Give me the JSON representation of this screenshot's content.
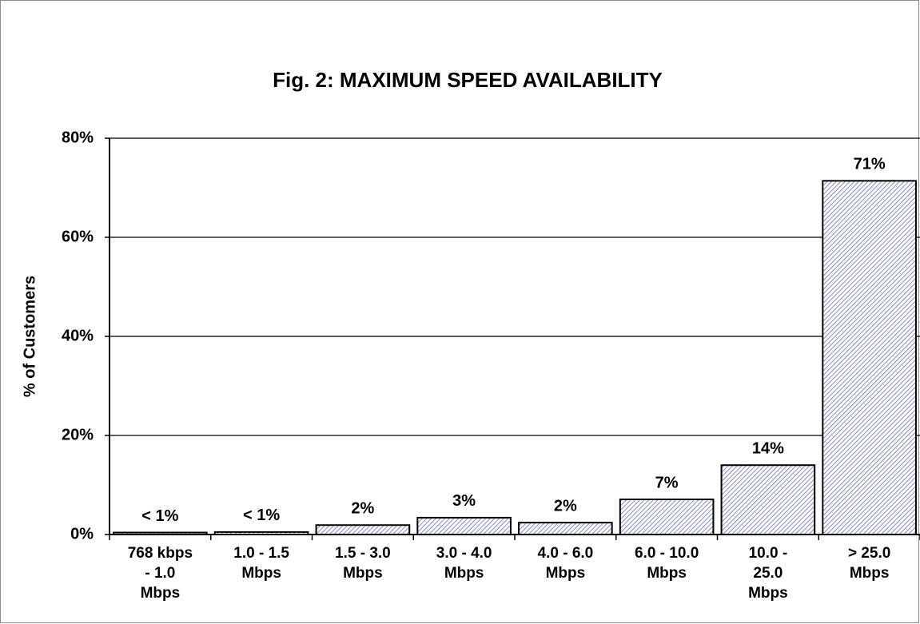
{
  "chart_data": {
    "type": "bar",
    "title": "Fig. 2:  MAXIMUM SPEED AVAILABILITY",
    "y_label": "% of Customers",
    "categories": [
      "768 kbps\n- 1.0\nMbps",
      "1.0 - 1.5\nMbps",
      "1.5 - 3.0\nMbps",
      "3.0 - 4.0\nMbps",
      "4.0 - 6.0\nMbps",
      "6.0 - 10.0\nMbps",
      "10.0 -\n25.0\nMbps",
      "> 25.0\nMbps"
    ],
    "values": [
      0.4,
      0.5,
      1.9,
      3.4,
      2.4,
      7.1,
      14,
      71.4
    ],
    "value_labels": [
      "< 1%",
      "< 1%",
      "2%",
      "3%",
      "2%",
      "7%",
      "14%",
      "71%"
    ],
    "color": "#6b6fa8",
    "ylim": [
      0,
      80
    ],
    "yticks": [
      {
        "value": 0,
        "label": "0%"
      },
      {
        "value": 20,
        "label": "20%"
      },
      {
        "value": 40,
        "label": "40%"
      },
      {
        "value": 60,
        "label": "60%"
      },
      {
        "value": 80,
        "label": "80%"
      }
    ],
    "grid": true
  }
}
